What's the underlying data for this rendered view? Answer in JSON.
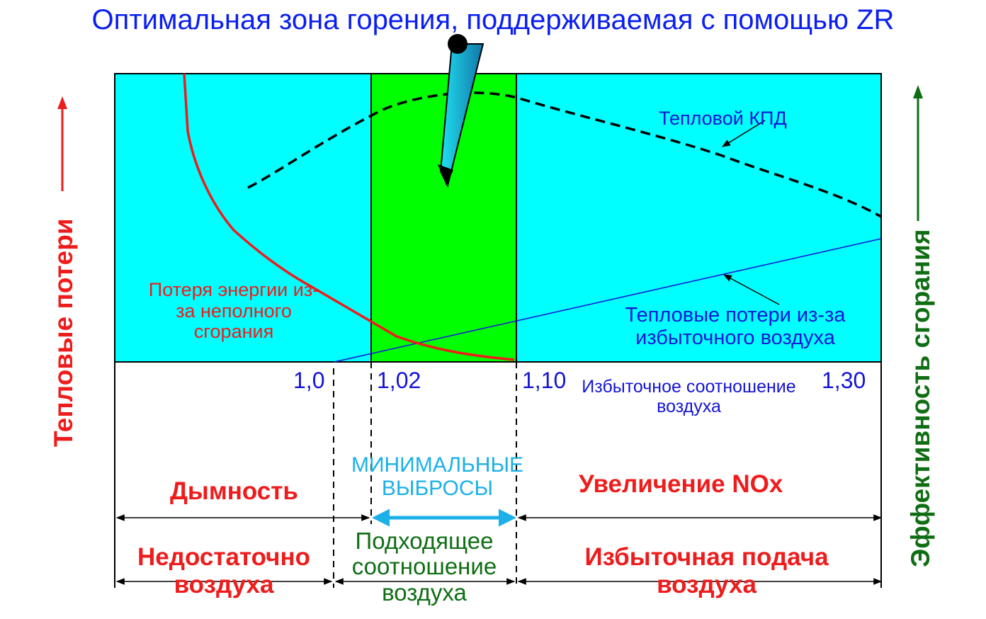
{
  "title": "Оптимальная зона горения, поддерживаемая с помощью ZR",
  "axes": {
    "left_label": "Тепловые потери",
    "right_label": "Эффективность сгорания",
    "x_label": "Избыточное соотношение воздуха",
    "ticks": [
      "1,0",
      "1,02",
      "1,10",
      "1,30"
    ]
  },
  "curves": {
    "efficiency_label": "Тепловой КПД",
    "incomplete_loss_label": "Потеря энергии из-за неполного сгорания",
    "excess_air_loss_label": "Тепловые потери из-за избыточного воздуха"
  },
  "zones": {
    "smoke": "Дымность",
    "min_emissions": "МИНИМАЛЬНЫЕ ВЫБРОСЫ",
    "nox": "Увеличение NOx",
    "insufficient_air": "Недостаточно воздуха",
    "suitable_ratio": "Подходящее соотношение воздуха",
    "excess_air": "Избыточная подача воздуха"
  },
  "colors": {
    "background_zone": "#00ffff",
    "optimal_zone": "#00ff00",
    "incomplete_loss_curve": "#ee1c1c",
    "excess_air_line": "#1a1adc",
    "efficiency_curve": "#000000",
    "left_arrow": "#ee1c1c",
    "right_arrow": "#0f6e14",
    "pointer": "#1ac8e0"
  },
  "icons": {
    "pointer": "pointer-arrow-icon"
  }
}
